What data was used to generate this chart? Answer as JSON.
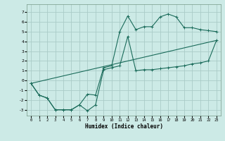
{
  "xlabel": "Humidex (Indice chaleur)",
  "background_color": "#cceae6",
  "grid_color": "#aaccc8",
  "line_color": "#1a6b5a",
  "xlim": [
    -0.5,
    23.5
  ],
  "ylim": [
    -3.6,
    7.8
  ],
  "xticks": [
    0,
    1,
    2,
    3,
    4,
    5,
    6,
    7,
    8,
    9,
    10,
    11,
    12,
    13,
    14,
    15,
    16,
    17,
    18,
    19,
    20,
    21,
    22,
    23
  ],
  "yticks": [
    -3,
    -2,
    -1,
    0,
    1,
    2,
    3,
    4,
    5,
    6,
    7
  ],
  "curve1_x": [
    0,
    1,
    2,
    3,
    4,
    5,
    6,
    7,
    8,
    9,
    10,
    11,
    12,
    13,
    14,
    15,
    16,
    17,
    18,
    19,
    20,
    21,
    22,
    23
  ],
  "curve1_y": [
    -0.3,
    -1.5,
    -1.8,
    -3.0,
    -3.0,
    -3.0,
    -2.5,
    -1.4,
    -1.5,
    1.3,
    1.5,
    5.0,
    6.6,
    5.2,
    5.5,
    5.5,
    6.5,
    6.8,
    6.5,
    5.4,
    5.4,
    5.2,
    5.1,
    5.0
  ],
  "curve2_x": [
    0,
    1,
    2,
    3,
    4,
    5,
    6,
    7,
    8,
    9,
    10,
    11,
    12,
    13,
    14,
    15,
    16,
    17,
    18,
    19,
    20,
    21,
    22,
    23
  ],
  "curve2_y": [
    -0.3,
    -1.5,
    -1.8,
    -3.0,
    -3.0,
    -3.0,
    -2.5,
    -3.1,
    -2.5,
    1.1,
    1.3,
    1.5,
    4.5,
    1.0,
    1.1,
    1.1,
    1.2,
    1.3,
    1.4,
    1.5,
    1.7,
    1.8,
    2.0,
    4.1
  ],
  "line_x": [
    0,
    23
  ],
  "line_y": [
    -0.3,
    4.1
  ]
}
